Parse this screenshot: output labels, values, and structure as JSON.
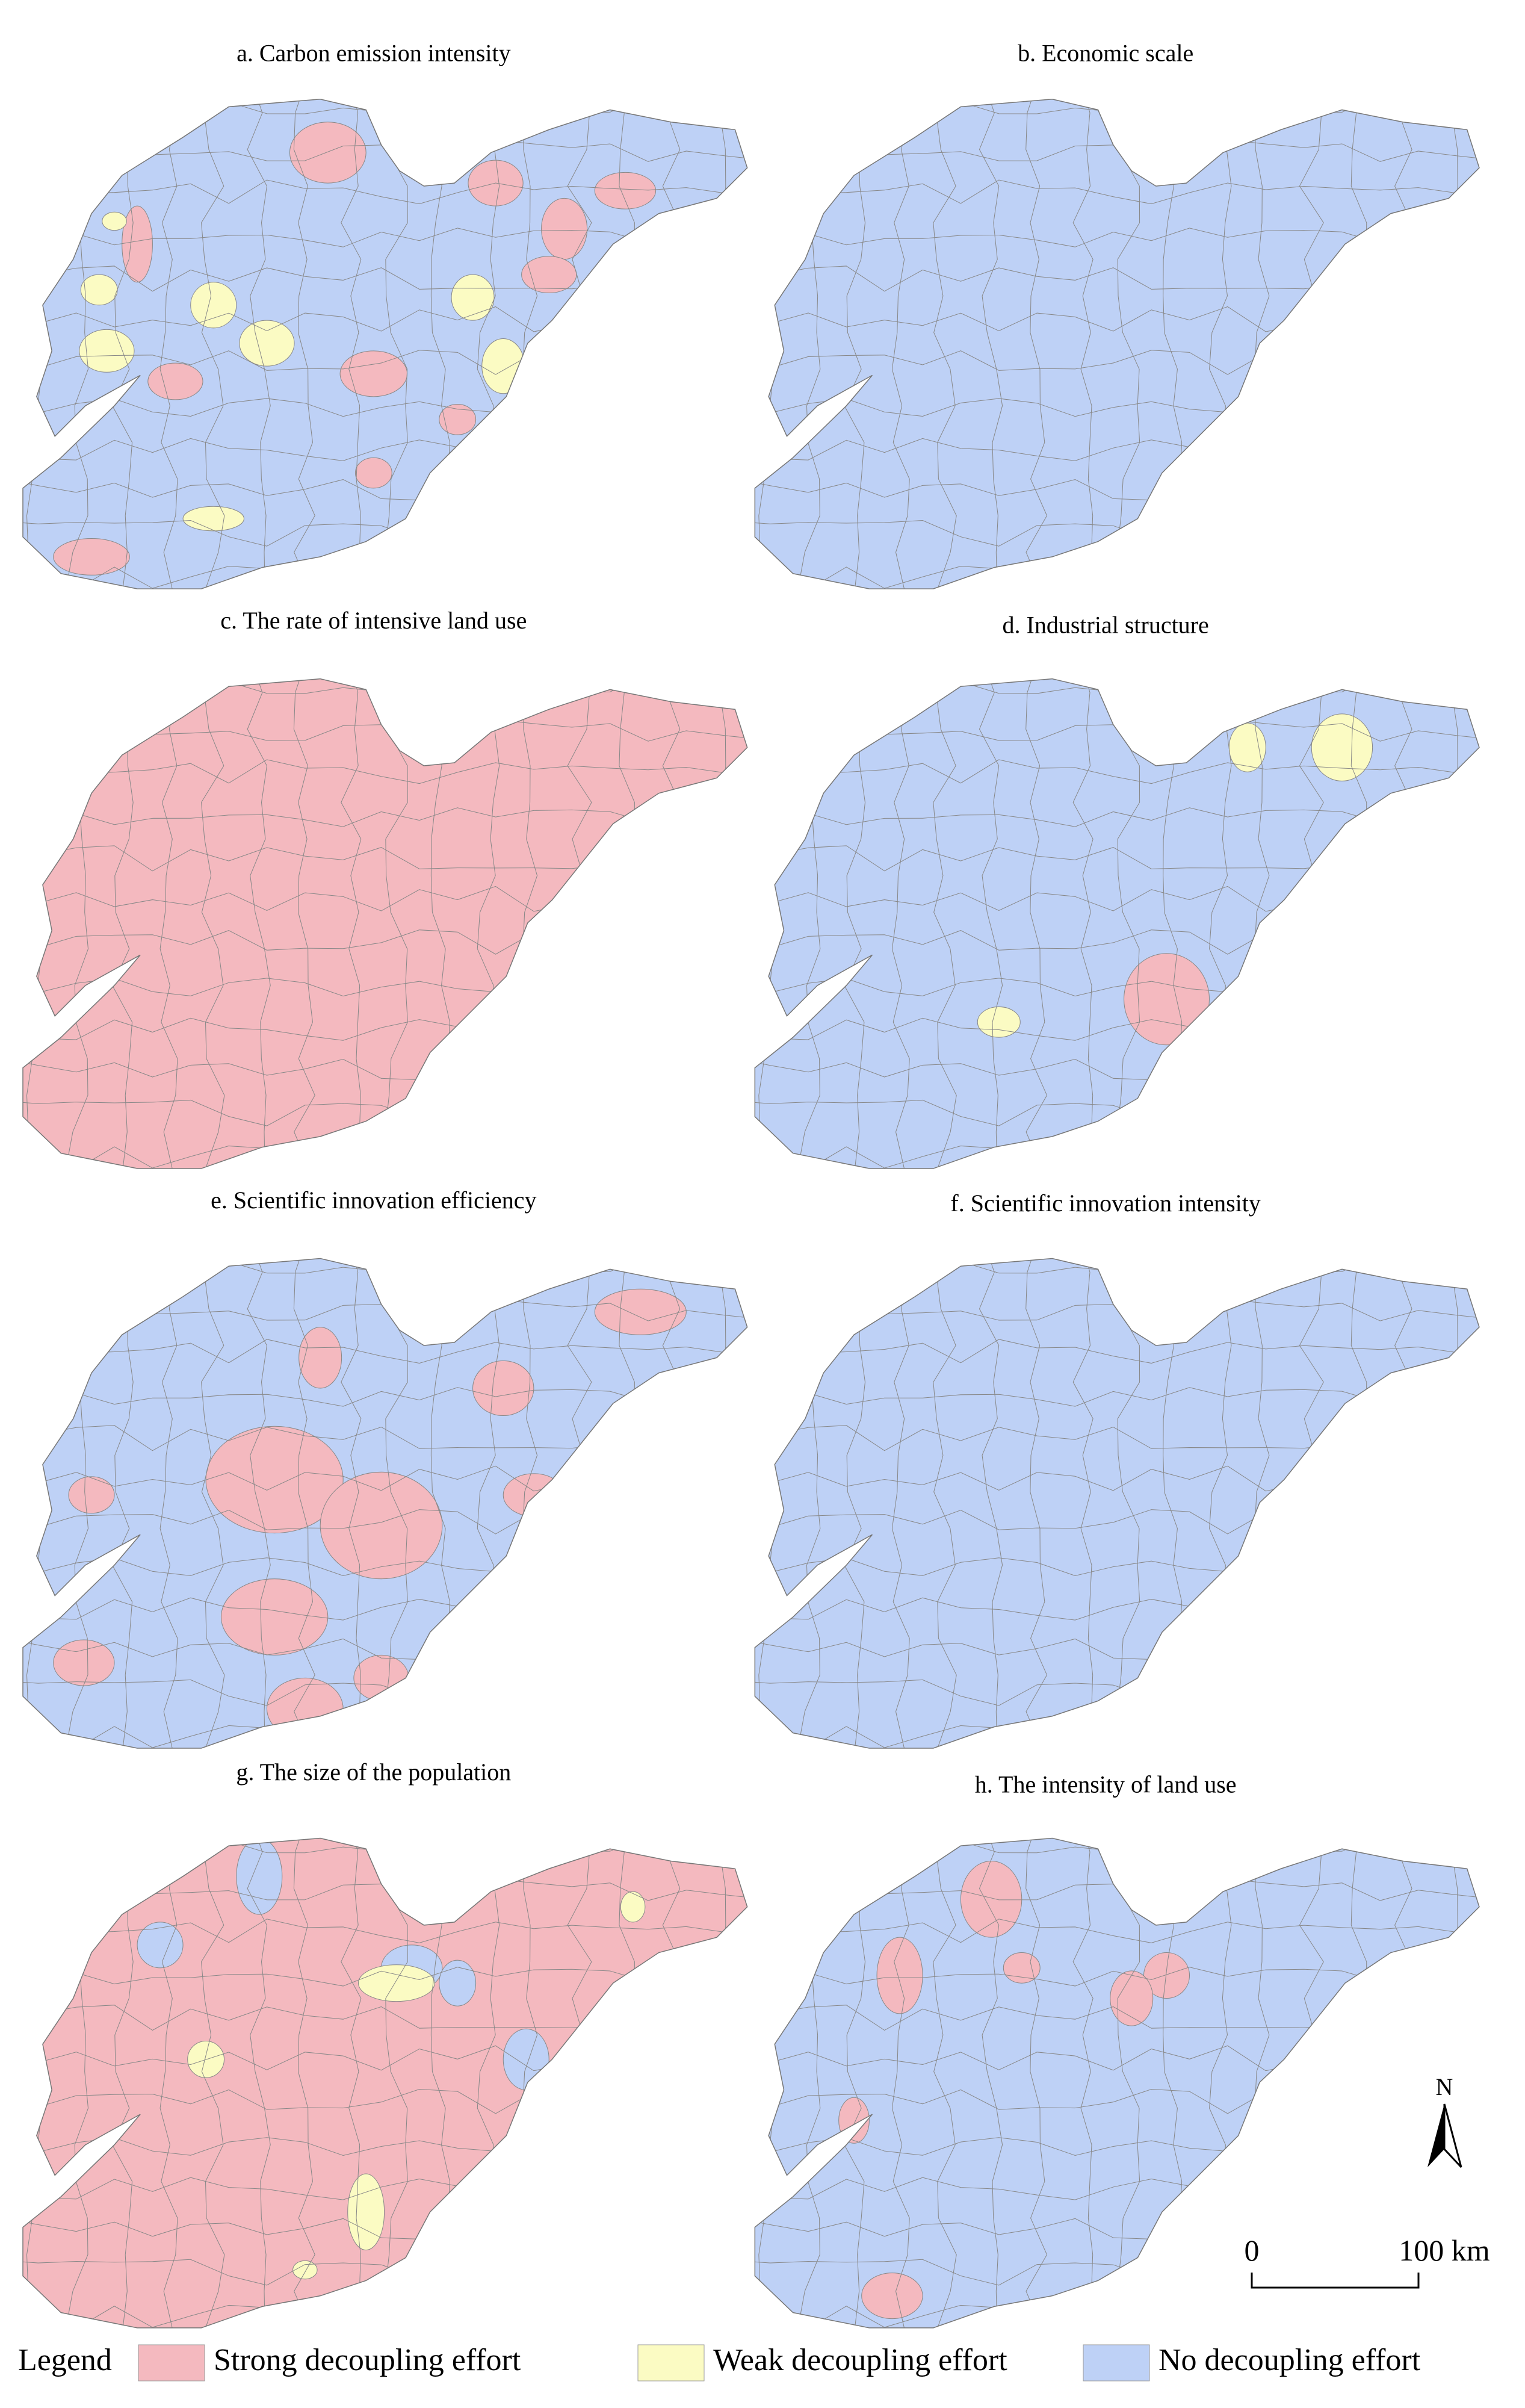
{
  "panels": [
    {
      "title": "a. Carbon emission intensity"
    },
    {
      "title": "b. Economic scale"
    },
    {
      "title": "c.  The rate of  intensive land use"
    },
    {
      "title": "d. Industrial structure"
    },
    {
      "title": "e. Scientific innovation efficiency"
    },
    {
      "title": "f. Scientific innovation intensity"
    },
    {
      "title": "g. The size of  the population"
    },
    {
      "title": "h. The intensity of land use"
    }
  ],
  "legend": {
    "title": "Legend",
    "items": [
      {
        "label": "Strong decoupling effort",
        "color": "#f4b9bf"
      },
      {
        "label": "Weak decoupling effort",
        "color": "#fbfbc3"
      },
      {
        "label": "No decoupling effort",
        "color": "#bed1f6"
      }
    ]
  },
  "scale_bar": {
    "start": "0",
    "end": "100 km"
  },
  "north": "N"
}
